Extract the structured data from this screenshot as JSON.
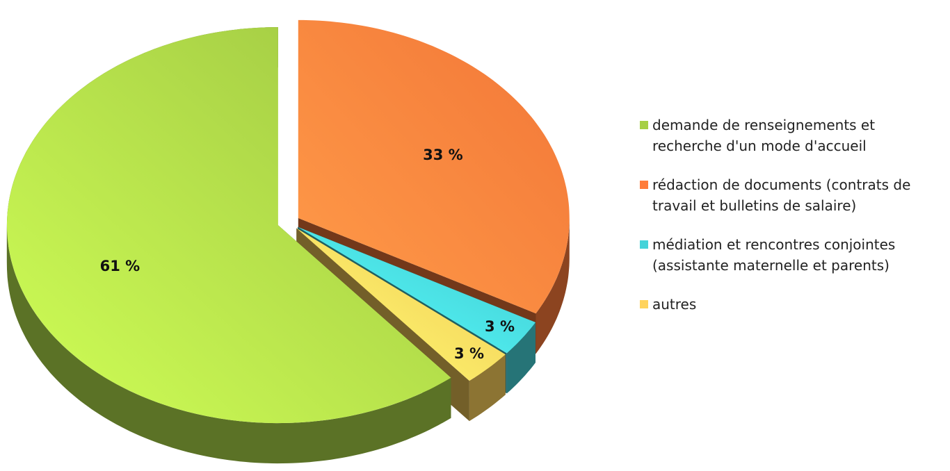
{
  "chart_data": {
    "type": "pie3d",
    "categories": [
      "demande de renseignements et recherche d'un mode d'accueil",
      "rédaction de documents (contrats de travail et bulletins de salaire)",
      "médiation et rencontres conjointes (assistante maternelle et parents)",
      "autres"
    ],
    "values": [
      61,
      33,
      3,
      3
    ],
    "value_labels": [
      "61 %",
      "33 %",
      "3 %",
      "3 %"
    ],
    "colors": [
      "#a6cf45",
      "#ff7c3a",
      "#45d3d9",
      "#ffd35c"
    ],
    "legend": "right"
  }
}
